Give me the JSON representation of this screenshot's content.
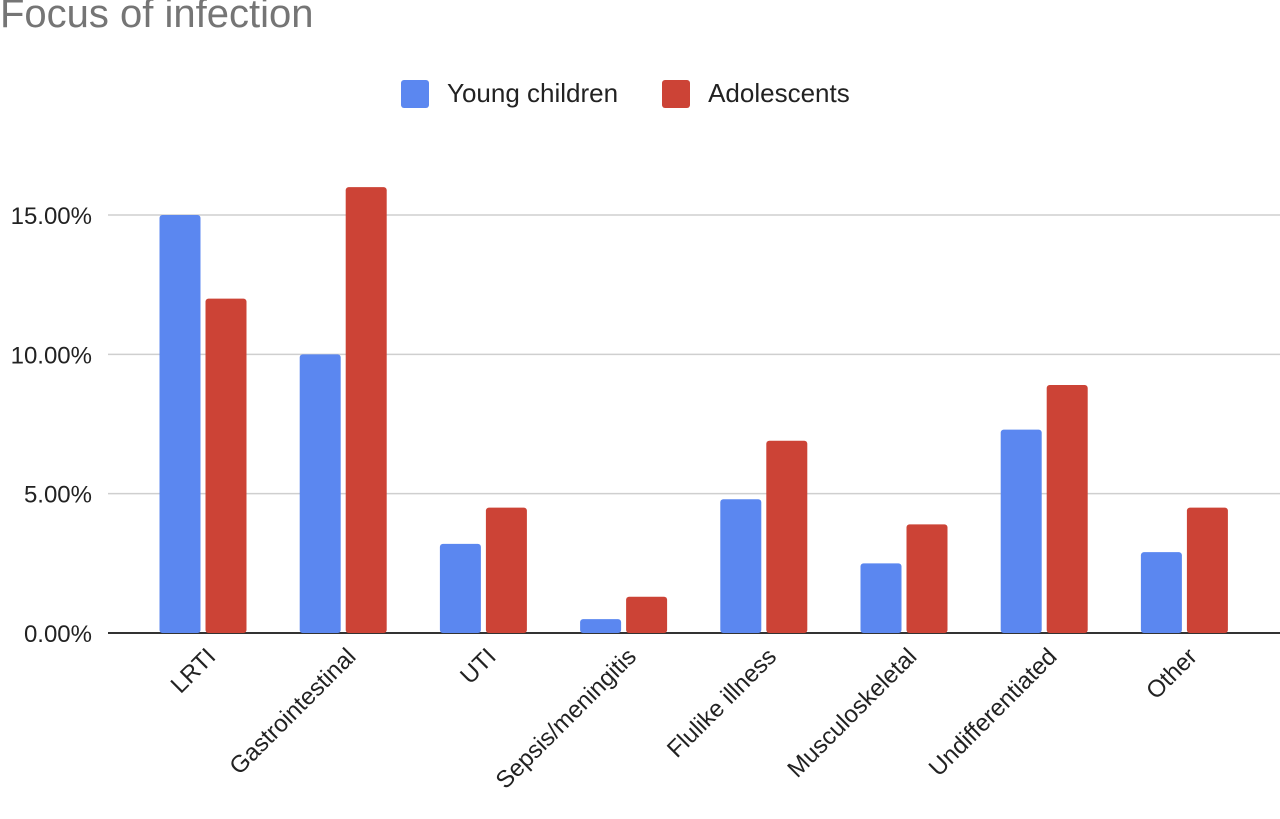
{
  "chart_data": {
    "type": "bar",
    "title": "Focus of infection",
    "xlabel": "",
    "ylabel": "",
    "categories": [
      "LRTI",
      "Gastrointestinal",
      "UTI",
      "Sepsis/meningitis",
      "Flulike illness",
      "Musculoskeletal",
      "Undifferentiated",
      "Other"
    ],
    "series": [
      {
        "name": "Young children",
        "color": "#5B87F0",
        "values": [
          15.0,
          10.0,
          3.2,
          0.5,
          4.8,
          2.5,
          7.3,
          2.9
        ]
      },
      {
        "name": "Adolescents",
        "color": "#CC4336",
        "values": [
          12.0,
          16.0,
          4.5,
          1.3,
          6.9,
          3.9,
          8.9,
          4.5
        ]
      }
    ],
    "ylim": [
      0,
      15
    ],
    "yticks": [
      "0.00%",
      "5.00%",
      "10.00%",
      "15.00%"
    ],
    "grid": true,
    "legend_position": "top"
  }
}
